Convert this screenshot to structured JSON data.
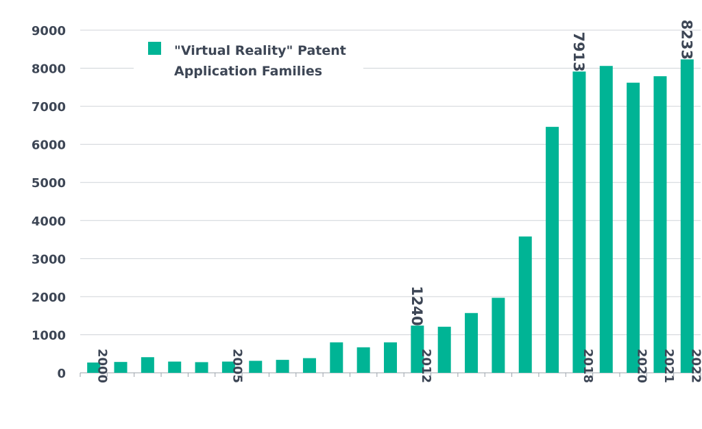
{
  "chart_data": {
    "type": "bar",
    "categories": [
      "2000",
      "2001",
      "2002",
      "2003",
      "2004",
      "2005",
      "2006",
      "2007",
      "2008",
      "2009",
      "2010",
      "2011",
      "2012",
      "2013",
      "2014",
      "2015",
      "2016",
      "2017",
      "2018",
      "2019",
      "2020",
      "2021",
      "2022"
    ],
    "category_labels": [
      "2000",
      "",
      "",
      "",
      "",
      "2005",
      "",
      "",
      "",
      "",
      "",
      "",
      "2012",
      "",
      "",
      "",
      "",
      "",
      "2018",
      "",
      "2020",
      "2021",
      "2022"
    ],
    "series": [
      {
        "name": "\"Virtual Reality\" Patent Application Families",
        "legend_lines": [
          "\"Virtual Reality\" Patent",
          "Application Families"
        ],
        "color": "#00b495",
        "values": [
          270,
          285,
          410,
          295,
          280,
          295,
          315,
          340,
          385,
          800,
          670,
          800,
          1240,
          1210,
          1570,
          1970,
          3580,
          6460,
          7913,
          8060,
          7620,
          7790,
          8233
        ]
      }
    ],
    "data_labels": [
      {
        "category": "2012",
        "text": "1240"
      },
      {
        "category": "2018",
        "text": "7913"
      },
      {
        "category": "2022",
        "text": "8233"
      }
    ],
    "ylim": [
      0,
      9000
    ],
    "yticks": [
      0,
      1000,
      2000,
      3000,
      4000,
      5000,
      6000,
      7000,
      8000,
      9000
    ],
    "grid": true,
    "legend_position": "top-left",
    "title": "",
    "xlabel": "",
    "ylabel": ""
  }
}
